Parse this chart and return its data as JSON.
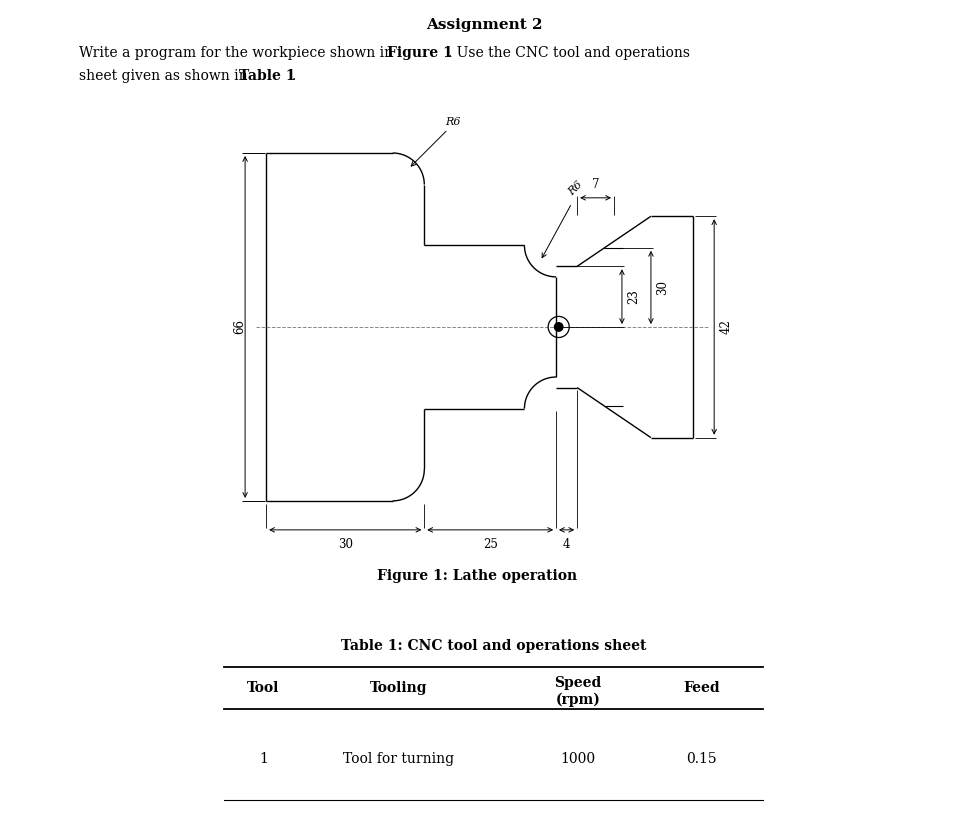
{
  "title": "Assignment 2",
  "bg_color": "#ffffff",
  "line_color": "#000000",
  "figure_caption": "Figure 1: Lathe operation",
  "table_title": "Table 1: CNC tool and operations sheet",
  "table_headers": [
    "Tool",
    "Tooling",
    "Speed\n(rpm)",
    "Feed"
  ],
  "table_data": [
    [
      "1",
      "Tool for turning",
      "1000",
      "0.15"
    ]
  ]
}
